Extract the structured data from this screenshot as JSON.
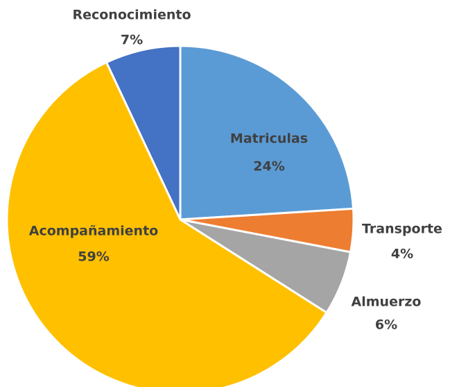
{
  "chart_data": {
    "type": "pie",
    "categories": [
      "Matriculas",
      "Transporte",
      "Almuerzo",
      "Acompañamiento",
      "Reconocimiento"
    ],
    "values": [
      24,
      4,
      6,
      59,
      7
    ],
    "value_labels": [
      "24%",
      "4%",
      "6%",
      "59%",
      "7%"
    ],
    "colors": [
      "#5b9bd5",
      "#ed7d31",
      "#a5a5a5",
      "#ffc000",
      "#4472c4"
    ]
  }
}
